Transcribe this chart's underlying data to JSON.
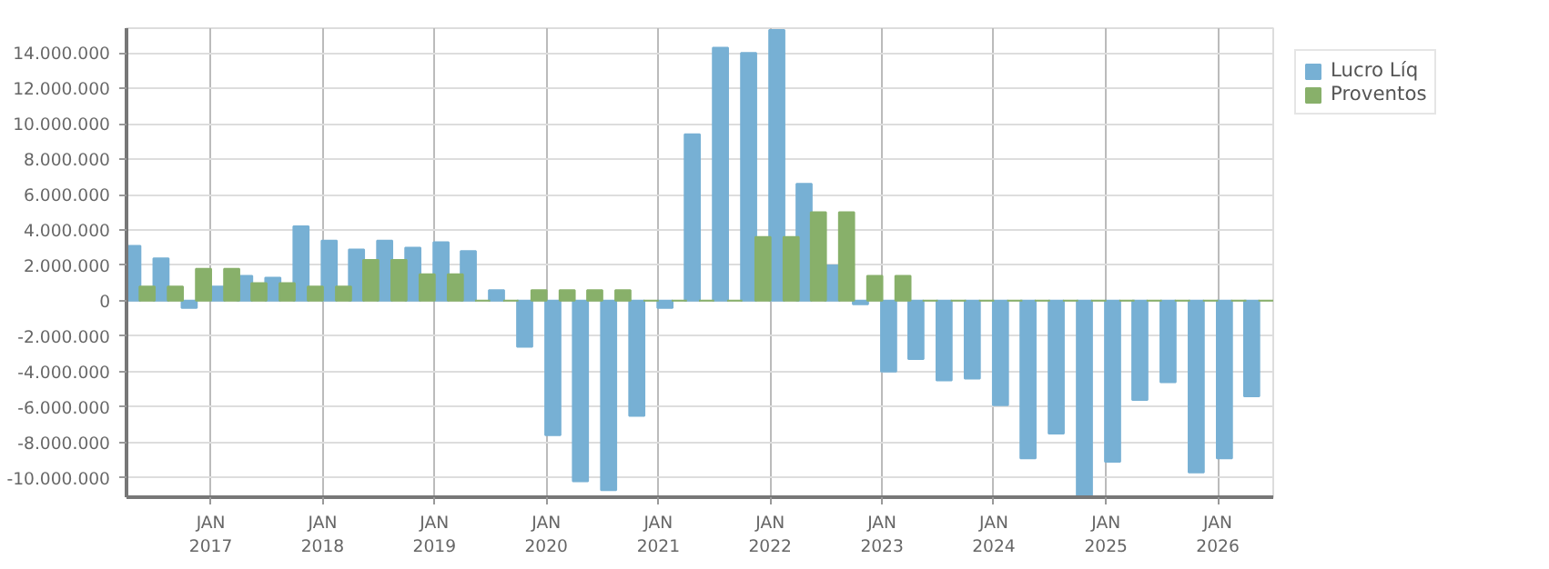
{
  "chart_data": {
    "type": "bar",
    "x": [
      "2016-05-15",
      "2016-08-15",
      "2016-11-15",
      "2017-02-15",
      "2017-05-15",
      "2017-08-15",
      "2017-11-15",
      "2018-02-15",
      "2018-05-15",
      "2018-08-15",
      "2018-11-15",
      "2019-02-15",
      "2019-05-15",
      "2019-08-15",
      "2019-11-15",
      "2020-02-15",
      "2020-05-15",
      "2020-08-15",
      "2020-11-15",
      "2021-02-15",
      "2021-05-15",
      "2021-08-15",
      "2021-11-15",
      "2022-02-15",
      "2022-05-15",
      "2022-08-15",
      "2022-11-15",
      "2023-02-15",
      "2023-05-15",
      "2023-08-15",
      "2023-11-15",
      "2024-02-15",
      "2024-05-15",
      "2024-08-15",
      "2024-11-15",
      "2025-02-15",
      "2025-05-15",
      "2025-08-15",
      "2025-11-15",
      "2026-02-15",
      "2026-05-15"
    ],
    "series": [
      {
        "name": "Lucro Líq",
        "color": "#77b0d4",
        "values": [
          3100000,
          2400000,
          -400000,
          800000,
          1400000,
          1300000,
          4200000,
          3400000,
          2900000,
          3400000,
          3000000,
          3300000,
          2800000,
          600000,
          -2600000,
          -7600000,
          -10200000,
          -10700000,
          -6500000,
          -400000,
          9400000,
          14300000,
          14000000,
          15300000,
          6600000,
          2000000,
          -200000,
          -4000000,
          -3300000,
          -4500000,
          -4400000,
          -5900000,
          -8900000,
          -7500000,
          -11000000,
          -9100000,
          -5600000,
          -4600000,
          -9700000,
          -8900000,
          -5400000
        ]
      },
      {
        "name": "Proventos",
        "color": "#88b06a",
        "values": [
          800000,
          800000,
          1800000,
          1800000,
          1000000,
          1000000,
          800000,
          800000,
          2300000,
          2300000,
          1500000,
          1500000,
          0,
          0,
          600000,
          600000,
          600000,
          600000,
          0,
          0,
          0,
          0,
          3600000,
          3600000,
          5000000,
          5000000,
          1400000,
          1400000,
          0,
          0,
          0,
          0,
          0,
          0,
          0,
          0,
          0,
          0,
          0,
          0,
          0
        ]
      }
    ],
    "xlim": [
      "2016-04-01",
      "2026-07-01"
    ],
    "xticks": [
      {
        "value": "2017-01-01",
        "label": "JAN\n2017"
      },
      {
        "value": "2018-01-01",
        "label": "JAN\n2018"
      },
      {
        "value": "2019-01-01",
        "label": "JAN\n2019"
      },
      {
        "value": "2020-01-01",
        "label": "JAN\n2020"
      },
      {
        "value": "2021-01-01",
        "label": "JAN\n2021"
      },
      {
        "value": "2022-01-01",
        "label": "JAN\n2022"
      },
      {
        "value": "2023-01-01",
        "label": "JAN\n2023"
      },
      {
        "value": "2024-01-01",
        "label": "JAN\n2024"
      },
      {
        "value": "2025-01-01",
        "label": "JAN\n2025"
      },
      {
        "value": "2026-01-01",
        "label": "JAN\n2026"
      }
    ],
    "ylim": [
      -11100000,
      15400000
    ],
    "yticks": [
      {
        "value": -10000000,
        "label": "-10.000.000"
      },
      {
        "value": -8000000,
        "label": "-8.000.000"
      },
      {
        "value": -6000000,
        "label": "-6.000.000"
      },
      {
        "value": -4000000,
        "label": "-4.000.000"
      },
      {
        "value": -2000000,
        "label": "-2.000.000"
      },
      0,
      {
        "value": 2000000,
        "label": "2.000.000"
      },
      {
        "value": 4000000,
        "label": "4.000.000"
      },
      {
        "value": 6000000,
        "label": "6.000.000"
      },
      {
        "value": 8000000,
        "label": "8.000.000"
      },
      {
        "value": 10000000,
        "label": "10.000.000"
      },
      {
        "value": 12000000,
        "label": "12.000.000"
      },
      {
        "value": 14000000,
        "label": "14.000.000"
      }
    ],
    "grid": true,
    "legend": "top right"
  }
}
